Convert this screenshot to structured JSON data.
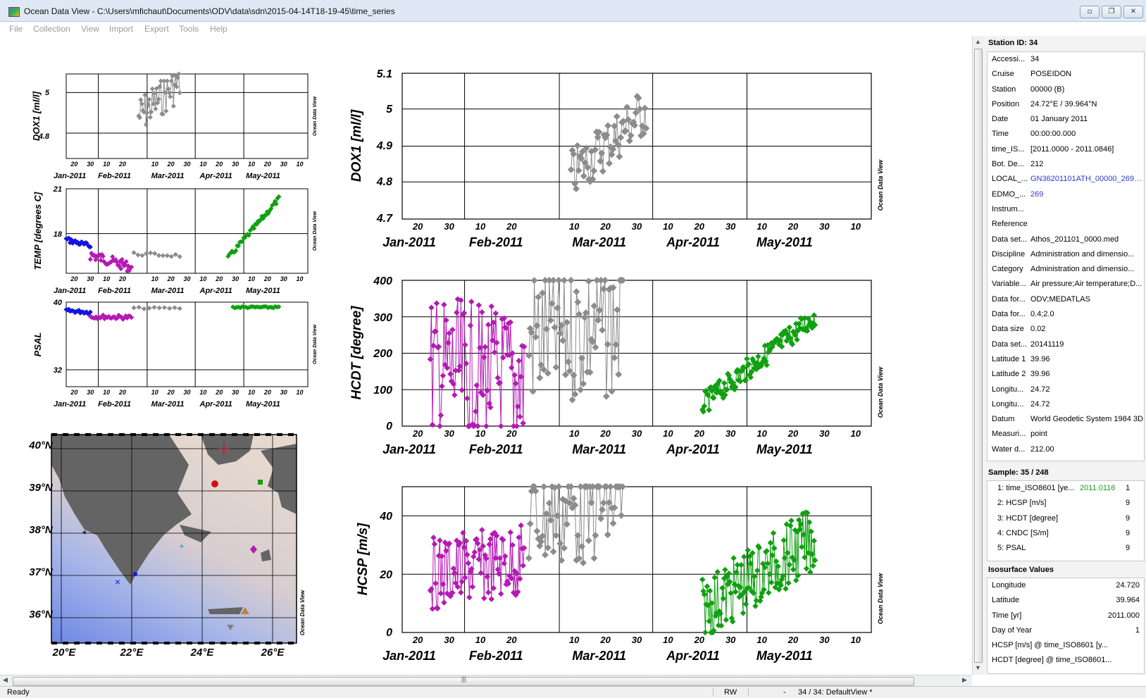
{
  "window": {
    "title": "Ocean Data View - C:\\Users\\mfichaut\\Documents\\ODV\\data\\sdn\\2015-04-14T18-19-45\\time_series",
    "buttons": [
      "minimize",
      "restore",
      "close"
    ]
  },
  "menu": [
    "File",
    "Collection",
    "View",
    "Import",
    "Export",
    "Tools",
    "Help"
  ],
  "watermark": "Ocean Data View",
  "colors": {
    "series_blue": "#1515e0",
    "series_magenta": "#b41ab4",
    "series_gray": "#8c8c8c",
    "series_green": "#10a010",
    "link": "#2a3bd1",
    "map_land": "#646464",
    "map_deep": "#6e87e6"
  },
  "plots": {
    "small_xticks": [
      "20",
      "30",
      "10",
      "20",
      "",
      "10",
      "20",
      "30",
      "10",
      "20",
      "30",
      "10",
      "20",
      "30",
      "10"
    ],
    "big_xticks": [
      "20",
      "30",
      "10",
      "20",
      "",
      "10",
      "20",
      "30",
      "10",
      "20",
      "30",
      "10",
      "20",
      "30",
      "10"
    ],
    "months": [
      "Jan-2011",
      "Feb-2011",
      "Mar-2011",
      "Apr-2011",
      "May-2011"
    ],
    "dox1_small": {
      "ylabel": "DOX1 [ml/l]",
      "yticks": [
        "5",
        "4.8"
      ]
    },
    "temp_small": {
      "ylabel": "TEMP [degrees C]",
      "yticks": [
        "21",
        "18"
      ]
    },
    "psal_small": {
      "ylabel": "PSAL",
      "yticks": [
        "40",
        "32"
      ]
    },
    "dox1_big": {
      "ylabel": "DOX1 [ml/l]",
      "yticks": [
        "5.1",
        "5",
        "4.9",
        "4.8",
        "4.7"
      ]
    },
    "hcdt_big": {
      "ylabel": "HCDT [degree]",
      "yticks": [
        "400",
        "300",
        "200",
        "100",
        "0"
      ]
    },
    "hcsp_big": {
      "ylabel": "HCSP [m/s]",
      "yticks": [
        "40",
        "20",
        "0"
      ]
    }
  },
  "map": {
    "lat_labels": [
      "40°N",
      "39°N",
      "38°N",
      "37°N",
      "36°N"
    ],
    "lon_labels": [
      "20°E",
      "22°E",
      "24°E",
      "26°E"
    ]
  },
  "station": {
    "header": "Station ID: 34",
    "rows": [
      {
        "k": "Accessi...",
        "v": "34"
      },
      {
        "k": "Cruise",
        "v": "POSEIDON"
      },
      {
        "k": "Station",
        "v": "00000 (B)"
      },
      {
        "k": "Position",
        "v": "24.72°E / 39.964°N"
      },
      {
        "k": "Date",
        "v": "01 January 2011"
      },
      {
        "k": "Time",
        "v": "00:00:00.000"
      },
      {
        "k": "time_IS...",
        "v": "[2011.0000 - 2011.0846]"
      },
      {
        "k": "Bot. De...",
        "v": "212"
      },
      {
        "k": "LOCAL_...",
        "v": "GN36201101ATH_00000_269_D...",
        "link": true
      },
      {
        "k": "EDMO_...",
        "v": "269",
        "link": true
      },
      {
        "k": "Instrum...",
        "v": ""
      },
      {
        "k": "Reference",
        "v": ""
      },
      {
        "k": "Data set...",
        "v": "Athos_201101_0000.med"
      },
      {
        "k": "Discipline",
        "v": "Administration and dimensio..."
      },
      {
        "k": "Category",
        "v": "Administration and dimensio..."
      },
      {
        "k": "Variable...",
        "v": "Air pressure;Air temperature;D..."
      },
      {
        "k": "Data for...",
        "v": "ODV;MEDATLAS"
      },
      {
        "k": "Data for...",
        "v": "0.4;2.0"
      },
      {
        "k": "Data size",
        "v": "0.02"
      },
      {
        "k": "Data set...",
        "v": "20141119"
      },
      {
        "k": "Latitude 1",
        "v": "39.96"
      },
      {
        "k": "Latitude 2",
        "v": "39.96"
      },
      {
        "k": "Longitu...",
        "v": "24.72"
      },
      {
        "k": "Longitu...",
        "v": "24.72"
      },
      {
        "k": "Datum",
        "v": "World Geodetic System 1984 3D"
      },
      {
        "k": "Measuri...",
        "v": "point"
      },
      {
        "k": "Water d...",
        "v": "212.00"
      }
    ]
  },
  "sample": {
    "header": "Sample: 35 / 248",
    "rows": [
      {
        "k": "1: time_ISO8601 [ye...",
        "g": "2011.0116",
        "n": "1"
      },
      {
        "k": "2: HCSP [m/s]",
        "g": "",
        "n": "9"
      },
      {
        "k": "3: HCDT [degree]",
        "g": "",
        "n": "9"
      },
      {
        "k": "4: CNDC [S/m]",
        "g": "",
        "n": "9"
      },
      {
        "k": "5: PSAL",
        "g": "",
        "n": "9"
      }
    ]
  },
  "iso": {
    "header": "Isosurface Values",
    "rows": [
      {
        "k": "Longitude",
        "v": "24.720"
      },
      {
        "k": "Latitude",
        "v": "39.964"
      },
      {
        "k": "Time [yr]",
        "v": "2011.000"
      },
      {
        "k": "Day of Year",
        "v": "1"
      },
      {
        "k": "HCSP [m/s] @ time_ISO8601 [y...",
        "v": ""
      },
      {
        "k": "HCDT [degree] @ time_ISO8601...",
        "v": ""
      }
    ]
  },
  "status": {
    "ready": "Ready",
    "mode": "RW",
    "dash": "-",
    "view": "34 / 34: DefaultView *"
  }
}
